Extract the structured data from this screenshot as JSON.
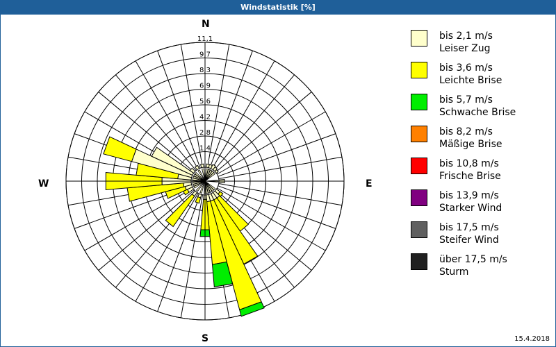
{
  "window": {
    "title": "Windstatistik [%]",
    "date": "15.4.2018"
  },
  "directions": {
    "n": "N",
    "e": "E",
    "s": "S",
    "w": "W"
  },
  "chart_data": {
    "type": "windrose",
    "title": "Windstatistik [%]",
    "unit": "%",
    "radial_ticks": [
      "1,4",
      "2,8",
      "4,2",
      "5,6",
      "6,9",
      "8,3",
      "9,7",
      "11,1"
    ],
    "radial_max": 11.1,
    "sector_width_deg": 10,
    "legend_position": "right",
    "series": [
      {
        "name": "bis 2,1 m/s Leiser Zug",
        "color": "#ffffcc"
      },
      {
        "name": "bis 3,6 m/s Leichte Brise",
        "color": "#ffff00"
      },
      {
        "name": "bis 5,7 m/s Schwache Brise",
        "color": "#00ee00"
      },
      {
        "name": "bis 8,2 m/s Mäßige Brise",
        "color": "#ff8000"
      },
      {
        "name": "bis 10,8 m/s Frische Brise",
        "color": "#ff0000"
      },
      {
        "name": "bis 13,9 m/s Starker Wind",
        "color": "#800080"
      },
      {
        "name": "bis 17,5 m/s Steifer Wind",
        "color": "#606060"
      },
      {
        "name": "über 17,5 m/s Sturm",
        "color": "#202020"
      }
    ],
    "sectors": [
      {
        "dir": 10,
        "values": [
          0.3,
          0.0,
          0.0
        ]
      },
      {
        "dir": 20,
        "values": [
          0.3,
          0.0,
          0.0
        ]
      },
      {
        "dir": 30,
        "values": [
          0.4,
          0.0,
          0.0
        ]
      },
      {
        "dir": 40,
        "values": [
          0.3,
          0.0,
          0.0
        ]
      },
      {
        "dir": 50,
        "values": [
          0.2,
          0.0,
          0.0
        ]
      },
      {
        "dir": 90,
        "values": [
          0.5,
          0.0,
          0.0
        ]
      },
      {
        "dir": 130,
        "values": [
          0.4,
          0.3,
          0.0
        ]
      },
      {
        "dir": 140,
        "values": [
          0.6,
          3.6,
          0.0
        ]
      },
      {
        "dir": 150,
        "values": [
          0.6,
          6.3,
          0.0
        ]
      },
      {
        "dir": 160,
        "values": [
          0.6,
          10.0,
          0.6
        ]
      },
      {
        "dir": 170,
        "values": [
          0.6,
          5.6,
          2.0
        ]
      },
      {
        "dir": 180,
        "values": [
          0.4,
          2.7,
          0.6
        ]
      },
      {
        "dir": 200,
        "values": [
          0.3,
          0.5,
          0.0
        ]
      },
      {
        "dir": 220,
        "values": [
          0.4,
          3.3,
          0.0
        ]
      },
      {
        "dir": 240,
        "values": [
          0.5,
          0.4,
          0.0
        ]
      },
      {
        "dir": 250,
        "values": [
          0.6,
          1.8,
          0.0
        ]
      },
      {
        "dir": 260,
        "values": [
          0.7,
          5.0,
          0.0
        ]
      },
      {
        "dir": 270,
        "values": [
          2.6,
          5.0,
          0.0
        ]
      },
      {
        "dir": 280,
        "values": [
          1.2,
          3.7,
          0.0
        ]
      },
      {
        "dir": 290,
        "values": [
          5.5,
          2.6,
          0.0
        ]
      },
      {
        "dir": 300,
        "values": [
          4.0,
          0.0,
          0.0
        ]
      },
      {
        "dir": 310,
        "values": [
          0.4,
          0.0,
          0.0
        ]
      },
      {
        "dir": 330,
        "values": [
          0.3,
          0.0,
          0.0
        ]
      },
      {
        "dir": 350,
        "values": [
          0.3,
          0.0,
          0.0
        ]
      }
    ]
  },
  "legend": {
    "items": [
      {
        "line1": "bis 2,1 m/s",
        "line2": "Leiser Zug",
        "color": "#ffffcc"
      },
      {
        "line1": "bis 3,6 m/s",
        "line2": "Leichte Brise",
        "color": "#ffff00"
      },
      {
        "line1": "bis 5,7 m/s",
        "line2": "Schwache Brise",
        "color": "#00ee00"
      },
      {
        "line1": "bis 8,2 m/s",
        "line2": "Mäßige Brise",
        "color": "#ff8000"
      },
      {
        "line1": "bis 10,8 m/s",
        "line2": "Frische Brise",
        "color": "#ff0000"
      },
      {
        "line1": "bis 13,9 m/s",
        "line2": "Starker Wind",
        "color": "#800080"
      },
      {
        "line1": "bis 17,5 m/s",
        "line2": "Steifer Wind",
        "color": "#606060"
      },
      {
        "line1": "über 17,5 m/s",
        "line2": "Sturm",
        "color": "#202020"
      }
    ]
  }
}
